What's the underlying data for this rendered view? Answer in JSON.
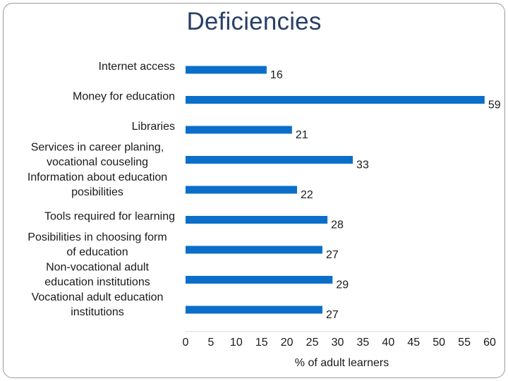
{
  "slide": {
    "title": "Deficiencies"
  },
  "chart_data": {
    "type": "bar",
    "orientation": "horizontal",
    "categories": [
      "Internet access",
      "Money for education",
      "Libraries",
      "Services in career planing, vocational couseling",
      "Information about education posibilities",
      "Tools required for learning",
      "Posibilities in choosing form of education",
      "Non-vocational adult education institutions",
      "Vocational adult education institutions"
    ],
    "category_lines": [
      [
        "Internet access"
      ],
      [
        "Money for education"
      ],
      [
        "Libraries"
      ],
      [
        "Services in career planing,",
        "vocational couseling"
      ],
      [
        "Information about education",
        "posibilities"
      ],
      [
        "Tools required for learning"
      ],
      [
        "Posibilities in choosing form",
        "of education"
      ],
      [
        "Non-vocational adult",
        "education institutions"
      ],
      [
        "Vocational adult education",
        "institutions"
      ]
    ],
    "values": [
      16,
      59,
      21,
      33,
      22,
      28,
      27,
      29,
      27
    ],
    "data_labels": [
      "16",
      "59",
      "21",
      "33",
      "22",
      "28",
      "27",
      "29",
      "27"
    ],
    "xlabel": "% of adult learners",
    "xlim": [
      0,
      60
    ],
    "xticks": [
      0,
      5,
      10,
      15,
      20,
      25,
      30,
      35,
      40,
      45,
      50,
      55,
      60
    ],
    "bar_color": "#0b6fc9",
    "grid": false,
    "legend": "none"
  }
}
